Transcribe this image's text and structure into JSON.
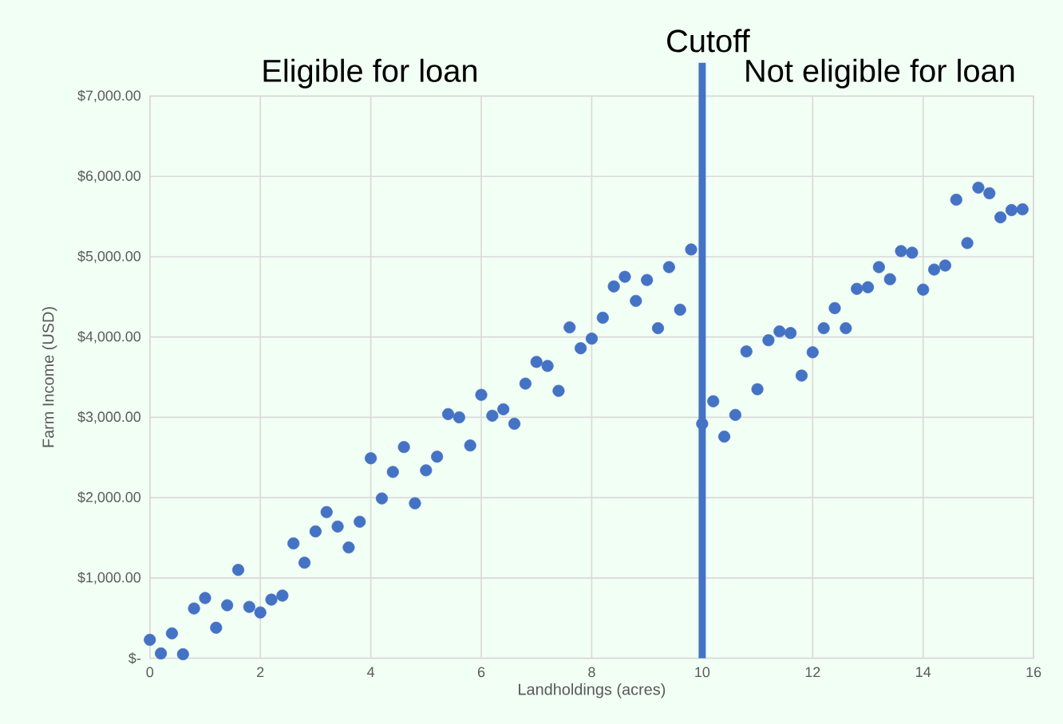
{
  "chart_data": {
    "type": "scatter",
    "xlabel": "Landholdings (acres)",
    "ylabel": "Farm Income (USD)",
    "x": [
      0,
      0.2,
      0.4,
      0.6,
      0.8,
      1.0,
      1.2,
      1.4,
      1.6,
      1.8,
      2.0,
      2.2,
      2.4,
      2.6,
      2.8,
      3.0,
      3.2,
      3.4,
      3.6,
      3.8,
      4.0,
      4.2,
      4.4,
      4.6,
      4.8,
      5.0,
      5.2,
      5.4,
      5.6,
      5.8,
      6.0,
      6.2,
      6.4,
      6.6,
      6.8,
      7.0,
      7.2,
      7.4,
      7.6,
      7.8,
      8.0,
      8.2,
      8.4,
      8.6,
      8.8,
      9.0,
      9.2,
      9.4,
      9.6,
      9.8,
      10.0,
      10.2,
      10.4,
      10.6,
      10.8,
      11.0,
      11.2,
      11.4,
      11.6,
      11.8,
      12.0,
      12.2,
      12.4,
      12.6,
      12.8,
      13.0,
      13.2,
      13.4,
      13.6,
      13.8,
      14.0,
      14.2,
      14.4,
      14.6,
      14.8,
      15.0,
      15.2,
      15.4,
      15.6,
      15.8
    ],
    "series": [
      {
        "color": "#4472c4",
        "values": [
          230,
          60,
          310,
          50,
          620,
          750,
          380,
          660,
          1100,
          640,
          570,
          730,
          780,
          1430,
          1190,
          1580,
          1820,
          1640,
          1380,
          1700,
          2490,
          1990,
          2320,
          2630,
          1930,
          2340,
          2510,
          3040,
          3000,
          2650,
          3280,
          3020,
          3100,
          2920,
          3420,
          3690,
          3640,
          3330,
          4120,
          3860,
          3980,
          4240,
          4630,
          4750,
          4450,
          4710,
          4110,
          4870,
          4340,
          5090,
          2920,
          3200,
          2760,
          3030,
          3820,
          3350,
          3960,
          4070,
          4050,
          3520,
          3810,
          4110,
          4360,
          4110,
          4600,
          4620,
          4870,
          4720,
          5070,
          5050,
          4590,
          4840,
          4890,
          5710,
          5170,
          5860,
          5790,
          5490,
          5580,
          5590
        ]
      }
    ],
    "xlim": [
      0,
      16
    ],
    "xticks": [
      0,
      2,
      4,
      6,
      8,
      10,
      12,
      14,
      16
    ],
    "ylim": [
      0,
      7000
    ],
    "yticks": [
      {
        "value": 0,
        "label": "$-"
      },
      {
        "value": 1000,
        "label": "$1,000.00"
      },
      {
        "value": 2000,
        "label": "$2,000.00"
      },
      {
        "value": 3000,
        "label": "$3,000.00"
      },
      {
        "value": 4000,
        "label": "$4,000.00"
      },
      {
        "value": 5000,
        "label": "$5,000.00"
      },
      {
        "value": 6000,
        "label": "$6,000.00"
      },
      {
        "value": 7000,
        "label": "$7,000.00"
      }
    ],
    "grid": true,
    "marker": "circle",
    "ref_lines": [
      {
        "axis": "x",
        "value": 10,
        "label": "Cutoff",
        "color": "#4472c4"
      }
    ],
    "annotations": [
      "Eligible for loan",
      "Not eligible for loan"
    ]
  }
}
